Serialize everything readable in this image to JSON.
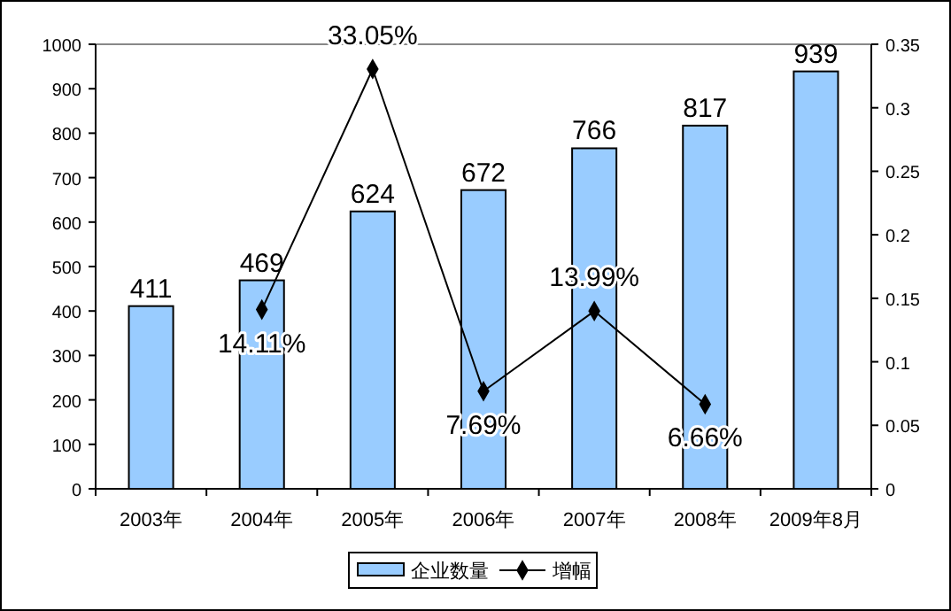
{
  "chart_data": {
    "type": "bar",
    "categories": [
      "2003年",
      "2004年",
      "2005年",
      "2006年",
      "2007年",
      "2008年",
      "2009年8月"
    ],
    "series": [
      {
        "name": "企业数量",
        "color": "#99ccff",
        "values": [
          411,
          469,
          624,
          672,
          766,
          817,
          939
        ]
      },
      {
        "name": "增幅",
        "type": "line",
        "axis": "y2",
        "color": "#000000",
        "marker": "diamond",
        "values": [
          null,
          0.1411,
          0.3305,
          0.0769,
          0.1399,
          0.0666,
          null
        ],
        "value_labels": [
          null,
          "14.11%",
          "33.05%",
          "7.69%",
          "13.99%",
          "6.66%",
          null
        ]
      }
    ],
    "data_labels": true,
    "ylim": [
      0,
      1000
    ],
    "yticks": [
      0,
      100,
      200,
      300,
      400,
      500,
      600,
      700,
      800,
      900,
      1000
    ],
    "y2lim": [
      0,
      0.35
    ],
    "y2ticks": [
      0,
      0.05,
      0.1,
      0.15,
      0.2,
      0.25,
      0.3,
      0.35
    ],
    "grid": false,
    "legend": "bottom"
  }
}
